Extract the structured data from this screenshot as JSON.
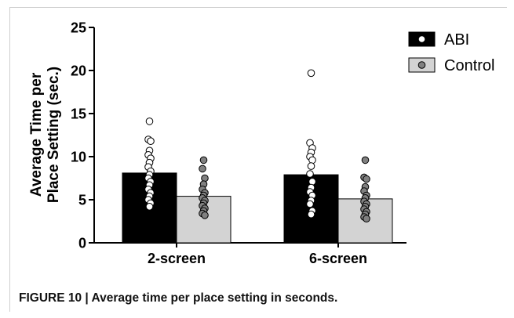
{
  "caption": "FIGURE 10 | Average time per place setting in seconds.",
  "colors": {
    "abi_bar": "#000000",
    "control_bar": "#d3d3d3",
    "abi_dot": "#ffffff",
    "control_dot": "#808080"
  },
  "chart_data": {
    "type": "bar",
    "title": "",
    "xlabel": "",
    "ylabel": "Average Time per Place Setting  (sec.)",
    "ylabel_lines": [
      "Average Time per",
      "Place Setting  (sec.)"
    ],
    "ylim": [
      0,
      25
    ],
    "yticks": [
      "0",
      "5",
      "10",
      "15",
      "20",
      "25"
    ],
    "categories": [
      "2-screen",
      "6-screen"
    ],
    "legend_position": "top-right",
    "series": [
      {
        "name": "ABI",
        "values": [
          8.1,
          7.9
        ],
        "points": [
          [
            14.1,
            12.0,
            11.8,
            10.7,
            10.2,
            9.8,
            9.3,
            8.8,
            8.3,
            7.9,
            7.5,
            7.1,
            6.7,
            6.2,
            5.8,
            5.4,
            5.0,
            4.6,
            4.2
          ],
          [
            19.7,
            11.6,
            11.0,
            10.5,
            10.0,
            9.6,
            8.9,
            8.0,
            7.1,
            6.4,
            5.9,
            5.5,
            4.9,
            4.5,
            3.7,
            3.3
          ]
        ]
      },
      {
        "name": "Control",
        "values": [
          5.4,
          5.1
        ],
        "points": [
          [
            9.6,
            8.6,
            7.5,
            6.8,
            6.2,
            5.8,
            5.5,
            5.2,
            4.9,
            4.6,
            4.3,
            4.0,
            3.7,
            3.4,
            3.2
          ],
          [
            9.6,
            7.6,
            7.4,
            6.5,
            6.0,
            5.5,
            5.2,
            4.8,
            4.5,
            4.2,
            3.9,
            3.6,
            3.3,
            3.0,
            2.8
          ]
        ]
      }
    ]
  }
}
